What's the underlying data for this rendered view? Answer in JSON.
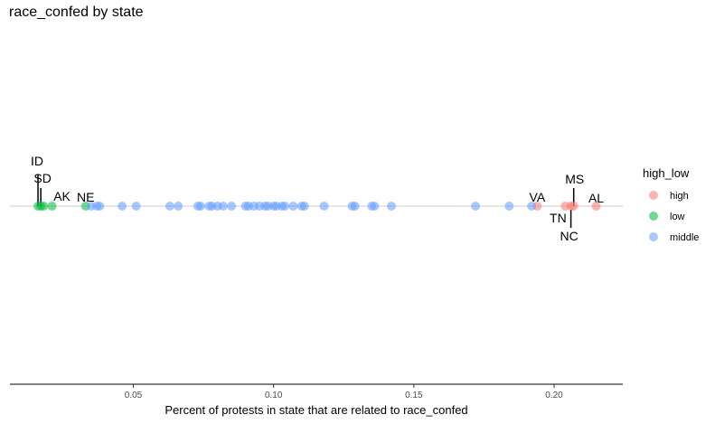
{
  "chart_data": {
    "type": "scatter",
    "title": "race_confed by state",
    "xlabel": "Percent of protests in state that are related to race_confed",
    "ylabel": "",
    "xlim": [
      0.006,
      0.2245
    ],
    "x_ticks": [
      "0.05",
      "0.10",
      "0.15",
      "0.20"
    ],
    "x_tick_values": [
      0.05,
      0.1,
      0.15,
      0.2
    ],
    "grid": false,
    "legend": {
      "title": "high_low",
      "placement": "right",
      "entries": [
        {
          "label": "high",
          "color": "#F8766D"
        },
        {
          "label": "low",
          "color": "#00BA38"
        },
        {
          "label": "middle",
          "color": "#619CFF"
        }
      ]
    },
    "series": [
      {
        "name": "high",
        "color": "#F8766D",
        "x": [
          0.194,
          0.204,
          0.206,
          0.207,
          0.215
        ]
      },
      {
        "name": "low",
        "color": "#00BA38",
        "x": [
          0.016,
          0.017,
          0.018,
          0.021,
          0.033
        ]
      },
      {
        "name": "middle",
        "color": "#619CFF",
        "x": [
          0.035,
          0.037,
          0.038,
          0.046,
          0.051,
          0.063,
          0.066,
          0.073,
          0.074,
          0.077,
          0.078,
          0.08,
          0.082,
          0.085,
          0.09,
          0.091,
          0.093,
          0.095,
          0.097,
          0.098,
          0.1,
          0.101,
          0.103,
          0.104,
          0.107,
          0.11,
          0.111,
          0.118,
          0.128,
          0.129,
          0.135,
          0.136,
          0.142,
          0.172,
          0.184,
          0.192
        ]
      }
    ],
    "labels": [
      {
        "text": "ID",
        "x": 0.016
      },
      {
        "text": "SD",
        "x": 0.017
      },
      {
        "text": "AK",
        "x": 0.021
      },
      {
        "text": "NE",
        "x": 0.033
      },
      {
        "text": "VA",
        "x": 0.194
      },
      {
        "text": "MS",
        "x": 0.207
      },
      {
        "text": "AL",
        "x": 0.215
      },
      {
        "text": "TN",
        "x": 0.204
      },
      {
        "text": "NC",
        "x": 0.206
      }
    ]
  }
}
